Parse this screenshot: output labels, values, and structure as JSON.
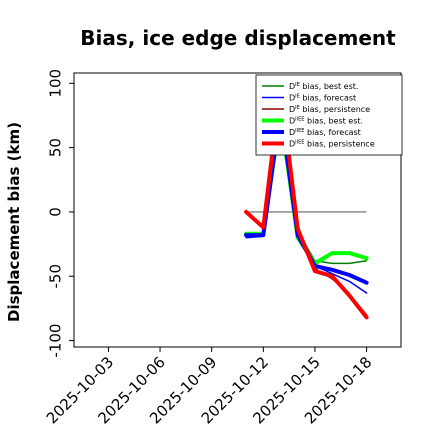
{
  "chart_data": {
    "type": "line",
    "title": "Bias, ice edge displacement",
    "ylabel": "Displacement bias (km)",
    "xlabel": "",
    "ylim": [
      -105,
      108
    ],
    "xlim": [
      "2025-10-01",
      "2025-10-20"
    ],
    "yticks": [
      100,
      50,
      0,
      -50,
      -100
    ],
    "xticks": [
      {
        "label": "2025-10-03",
        "color": "#000000"
      },
      {
        "label": "2025-10-06",
        "color": "#000000"
      },
      {
        "label": "2025-10-09",
        "color": "#228B22"
      },
      {
        "label": "2025-10-12",
        "color": "#000000"
      },
      {
        "label": "2025-10-15",
        "color": "#000000"
      },
      {
        "label": "2025-10-18",
        "color": "#000000"
      }
    ],
    "zero_line": {
      "from": "2025-10-11",
      "to": "2025-10-18",
      "y": 0,
      "color": "#808080"
    },
    "x": [
      "2025-10-11",
      "2025-10-12",
      "2025-10-13",
      "2025-10-14",
      "2025-10-15",
      "2025-10-16",
      "2025-10-17",
      "2025-10-18"
    ],
    "series": [
      {
        "name": "D<sup>IE</sup> bias, best est.",
        "main": "D",
        "sup": "IE",
        "rest": " bias, best est.",
        "color": "#008000",
        "width": 1.5,
        "values": [
          -18,
          -17,
          75,
          -15,
          -38,
          -40,
          -40,
          -38
        ]
      },
      {
        "name": "D<sup>IE</sup> bias, forecast",
        "main": "D",
        "sup": "IE",
        "rest": " bias, forecast",
        "color": "#0000ff",
        "width": 1.5,
        "values": [
          -20,
          -19,
          78,
          -18,
          -42,
          -48,
          -54,
          -63
        ]
      },
      {
        "name": "D<sup>IE</sup> bias, persistence",
        "main": "D",
        "sup": "IE",
        "rest": " bias, persistence",
        "color": "#8b0000",
        "width": 1.5,
        "values": [
          0,
          -12,
          92,
          -12,
          -44,
          -52,
          -64,
          -80
        ]
      },
      {
        "name": "D<sup>IIEE</sup> bias, best est.",
        "main": "D",
        "sup": "IIEE",
        "rest": " bias, best est.",
        "color": "#00ff00",
        "width": 4,
        "values": [
          -17,
          -17,
          76,
          -20,
          -40,
          -32,
          -32,
          -36
        ]
      },
      {
        "name": "D<sup>IIEE</sup> bias, forecast",
        "main": "D",
        "sup": "IIEE",
        "rest": " bias, forecast",
        "color": "#0000ff",
        "width": 4,
        "values": [
          -18,
          -18,
          80,
          -18,
          -42,
          -45,
          -49,
          -55
        ]
      },
      {
        "name": "D<sup>IIEE</sup> bias, persistence",
        "main": "D",
        "sup": "IIEE",
        "rest": " bias, persistence",
        "color": "#ff0000",
        "width": 4,
        "values": [
          0,
          -12,
          98,
          -13,
          -46,
          -50,
          -65,
          -82
        ]
      }
    ],
    "legend_position": "top-right",
    "grid": false
  }
}
